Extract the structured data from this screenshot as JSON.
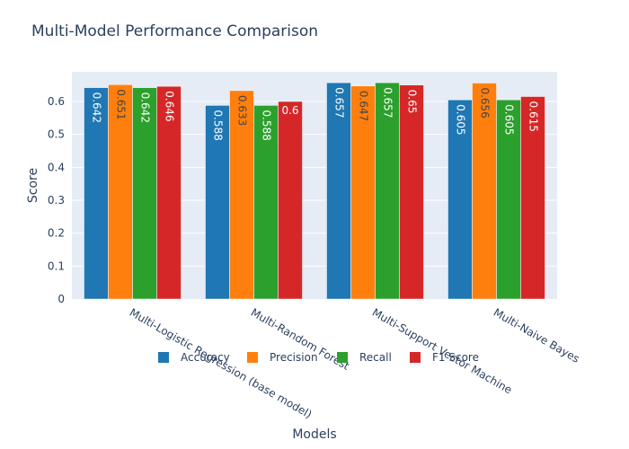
{
  "chart_data": {
    "type": "bar",
    "title": "Multi-Model Performance Comparison",
    "xlabel": "Models",
    "ylabel": "Score",
    "ylim": [
      0,
      0.69
    ],
    "yticks": [
      0,
      0.1,
      0.2,
      0.3,
      0.4,
      0.5,
      0.6
    ],
    "grid": true,
    "legend_position": "bottom-center",
    "categories": [
      "Multi-Logistic Regression (base model)",
      "Multi-Random Forest",
      "Multi-Support Vector Machine",
      "Multi-Naive Bayes"
    ],
    "series": [
      {
        "name": "Accuracy",
        "color": "#1f77b4",
        "label_color": "#ffffff",
        "values": [
          0.642,
          0.588,
          0.657,
          0.605
        ],
        "labels": [
          "0.642",
          "0.588",
          "0.657",
          "0.605"
        ]
      },
      {
        "name": "Precision",
        "color": "#ff7f0e",
        "label_color": "#444444",
        "values": [
          0.651,
          0.633,
          0.647,
          0.656
        ],
        "labels": [
          "0.651",
          "0.633",
          "0.647",
          "0.656"
        ]
      },
      {
        "name": "Recall",
        "color": "#2ca02c",
        "label_color": "#ffffff",
        "values": [
          0.642,
          0.588,
          0.657,
          0.605
        ],
        "labels": [
          "0.642",
          "0.588",
          "0.657",
          "0.605"
        ]
      },
      {
        "name": "F1 Score",
        "color": "#d62728",
        "label_color": "#ffffff",
        "values": [
          0.646,
          0.6,
          0.65,
          0.615
        ],
        "labels": [
          "0.646",
          "0.6",
          "0.65",
          "0.615"
        ]
      }
    ]
  }
}
